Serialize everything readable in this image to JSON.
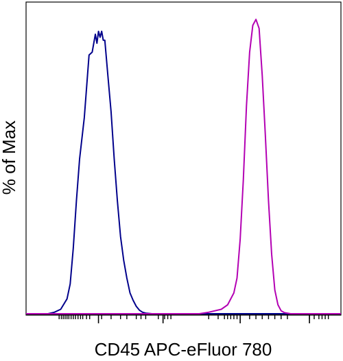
{
  "chart_data": {
    "type": "area",
    "title": "",
    "xlabel": "CD45 APC-eFluor 780",
    "ylabel": "% of Max",
    "x_scale": "log (biexponential)",
    "xlim": [
      0,
      100
    ],
    "ylim": [
      0,
      100
    ],
    "grid": false,
    "legend": "none",
    "x_ticks_labeled": false,
    "y_ticks_labeled": false,
    "series": [
      {
        "color": "#00008b",
        "x": [
          7.0,
          9.0,
          11.0,
          13.0,
          14.0,
          15.0,
          16.0,
          17.0,
          18.5,
          19.5,
          20.0,
          21.0,
          22.0,
          22.5,
          23.0,
          23.5,
          24.0,
          24.5,
          25.0,
          26.0,
          27.0,
          28.0,
          29.0,
          30.0,
          31.0,
          32.0,
          33.0,
          34.0,
          35.0,
          36.0,
          37.0,
          38.0,
          40.0,
          43.0,
          50.0,
          100.0
        ],
        "y": [
          0,
          0.5,
          1.5,
          5,
          10,
          22,
          38,
          52,
          66,
          80,
          87,
          88,
          94,
          91,
          95,
          93,
          95,
          92,
          92,
          80,
          68,
          52,
          38,
          26,
          18,
          12,
          7,
          4.5,
          2.5,
          1.2,
          0.5,
          0.2,
          0,
          0,
          0,
          0
        ]
      },
      {
        "color": "#b300b3",
        "x": [
          0,
          40.0,
          55.0,
          58.0,
          62.0,
          64.0,
          66.0,
          67.0,
          68.0,
          69.0,
          70.0,
          71.0,
          72.0,
          73.0,
          74.0,
          75.0,
          76.0,
          77.0,
          78.0,
          79.0,
          80.0,
          81.0,
          82.0,
          84.0,
          86.0,
          100.0
        ],
        "y": [
          0,
          0,
          0,
          0.5,
          1.5,
          3,
          7,
          12,
          25,
          45,
          70,
          88,
          97,
          99,
          96,
          80,
          60,
          38,
          20,
          8,
          3,
          1,
          0.4,
          0,
          0,
          0
        ]
      }
    ],
    "x_minor_ticks": [
      10.5,
      11.2,
      11.8,
      12.4,
      13.0,
      13.6,
      14.3,
      15.0,
      15.7,
      16.5,
      17.3,
      18.0,
      19.2,
      20.2,
      24.0,
      27.0,
      30.0,
      32.0,
      35.0,
      36.5,
      38.0,
      42.0,
      44.0,
      45.0,
      46.0,
      58.0,
      61.0,
      63.0,
      64.0,
      65.0,
      66.0,
      67.0,
      71.0,
      73.0,
      75.0,
      77.0,
      79.0,
      81.0,
      83.0,
      90.0,
      91.5,
      93.0,
      94.0,
      95.0,
      96.0
    ],
    "x_major_ticks": [
      23.0,
      43.5,
      68.0,
      90.0
    ]
  }
}
